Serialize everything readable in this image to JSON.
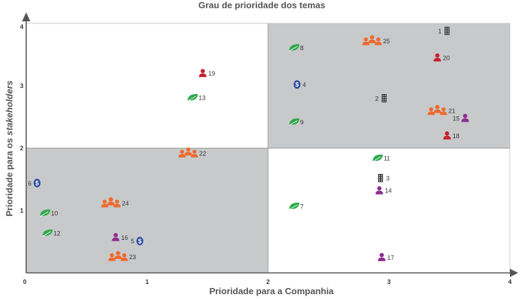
{
  "chart_data": {
    "type": "scatter",
    "title": "Grau de prioridade dos temas",
    "xlabel": "Prioridade para a Companhia",
    "ylabel_prefix": "Prioridade para os ",
    "ylabel_emphasis": "stakeholders",
    "xlim": [
      0,
      4
    ],
    "ylim": [
      0,
      4
    ],
    "x_ticks": [
      "0",
      "1",
      "2",
      "3",
      "4"
    ],
    "y_ticks": [
      "1",
      "2",
      "3",
      "4"
    ],
    "quadrant_split": {
      "x": 2,
      "y": 2
    },
    "shaded_quadrants": [
      "top-right",
      "bottom-left"
    ],
    "colors": {
      "shade": "#c8c9cb",
      "axis": "#555555",
      "orange": "#ef6a2c",
      "red": "#c8202f",
      "purple": "#8e2d8f",
      "green": "#2ea84a",
      "blue": "#2d4e9e",
      "building": "#333333"
    },
    "points": [
      {
        "label": "1",
        "x": 3.48,
        "y": 3.88,
        "icon": "building-icon",
        "label_side": "left"
      },
      {
        "label": "2",
        "x": 2.96,
        "y": 2.8,
        "icon": "building-icon",
        "label_side": "left"
      },
      {
        "label": "3",
        "x": 2.93,
        "y": 1.52,
        "icon": "building-icon",
        "label_side": "right"
      },
      {
        "label": "4",
        "x": 2.24,
        "y": 3.02,
        "icon": "dollar-icon",
        "label_side": "right"
      },
      {
        "label": "5",
        "x": 0.94,
        "y": 0.51,
        "icon": "dollar-icon",
        "label_side": "left"
      },
      {
        "label": "6",
        "x": 0.09,
        "y": 1.44,
        "icon": "dollar-icon",
        "label_side": "left"
      },
      {
        "label": "7",
        "x": 2.22,
        "y": 1.07,
        "icon": "leaf-icon",
        "label_side": "right"
      },
      {
        "label": "8",
        "x": 2.22,
        "y": 3.61,
        "icon": "leaf-icon",
        "label_side": "right"
      },
      {
        "label": "9",
        "x": 2.22,
        "y": 2.42,
        "icon": "leaf-icon",
        "label_side": "right"
      },
      {
        "label": "10",
        "x": 0.16,
        "y": 0.96,
        "icon": "leaf-icon",
        "label_side": "right"
      },
      {
        "label": "11",
        "x": 2.91,
        "y": 1.84,
        "icon": "leaf-icon",
        "label_side": "right"
      },
      {
        "label": "12",
        "x": 0.18,
        "y": 0.64,
        "icon": "leaf-icon",
        "label_side": "right"
      },
      {
        "label": "13",
        "x": 1.38,
        "y": 2.81,
        "icon": "leaf-icon",
        "label_side": "right"
      },
      {
        "label": "14",
        "x": 2.92,
        "y": 1.32,
        "icon": "person-icon",
        "color": "purple",
        "label_side": "right"
      },
      {
        "label": "15",
        "x": 3.63,
        "y": 2.48,
        "icon": "person-icon",
        "color": "purple",
        "label_side": "left"
      },
      {
        "label": "16",
        "x": 0.74,
        "y": 0.57,
        "icon": "person-icon",
        "color": "purple",
        "label_side": "right"
      },
      {
        "label": "17",
        "x": 2.94,
        "y": 0.25,
        "icon": "person-icon",
        "color": "purple",
        "label_side": "right"
      },
      {
        "label": "18",
        "x": 3.48,
        "y": 2.2,
        "icon": "person-icon",
        "color": "red",
        "label_side": "right"
      },
      {
        "label": "19",
        "x": 1.46,
        "y": 3.2,
        "icon": "person-icon",
        "color": "red",
        "label_side": "right"
      },
      {
        "label": "20",
        "x": 3.4,
        "y": 3.45,
        "icon": "person-icon",
        "color": "red",
        "label_side": "right"
      },
      {
        "label": "21",
        "x": 3.4,
        "y": 2.6,
        "icon": "group-icon",
        "label_side": "right"
      },
      {
        "label": "22",
        "x": 1.34,
        "y": 1.92,
        "icon": "group-icon",
        "label_side": "right"
      },
      {
        "label": "23",
        "x": 0.76,
        "y": 0.26,
        "icon": "group-icon",
        "label_side": "right"
      },
      {
        "label": "24",
        "x": 0.7,
        "y": 1.12,
        "icon": "group-icon",
        "label_side": "right"
      },
      {
        "label": "25",
        "x": 2.86,
        "y": 3.72,
        "icon": "group-icon",
        "label_side": "right"
      }
    ]
  }
}
